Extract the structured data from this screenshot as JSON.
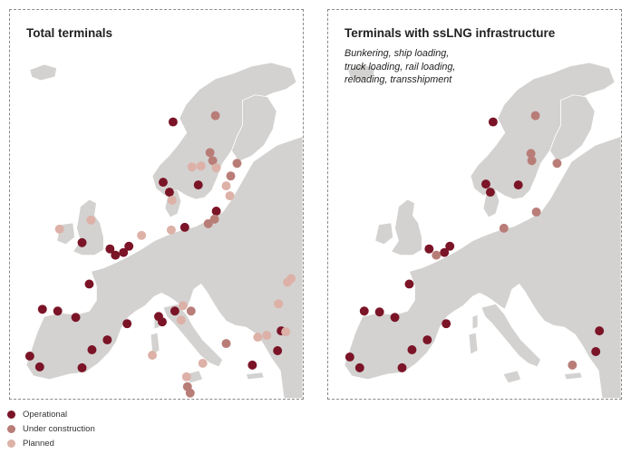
{
  "colors": {
    "operational": "#7b1427",
    "under_construction": "#b97d78",
    "planned": "#ddb1a7",
    "land": "#d3d2d0",
    "sea": "#ffffff"
  },
  "panels": [
    {
      "title": "Total terminals",
      "subtitle": []
    },
    {
      "title": "Terminals with ssLNG infrastructure",
      "subtitle": [
        "Bunkering, ship loading,",
        "truck loading, rail loading,",
        "reloading, transshipment"
      ]
    }
  ],
  "legend": [
    {
      "status": "operational",
      "label": "Operational"
    },
    {
      "status": "under_construction",
      "label": "Under construction"
    },
    {
      "status": "planned",
      "label": "Planned"
    }
  ]
}
